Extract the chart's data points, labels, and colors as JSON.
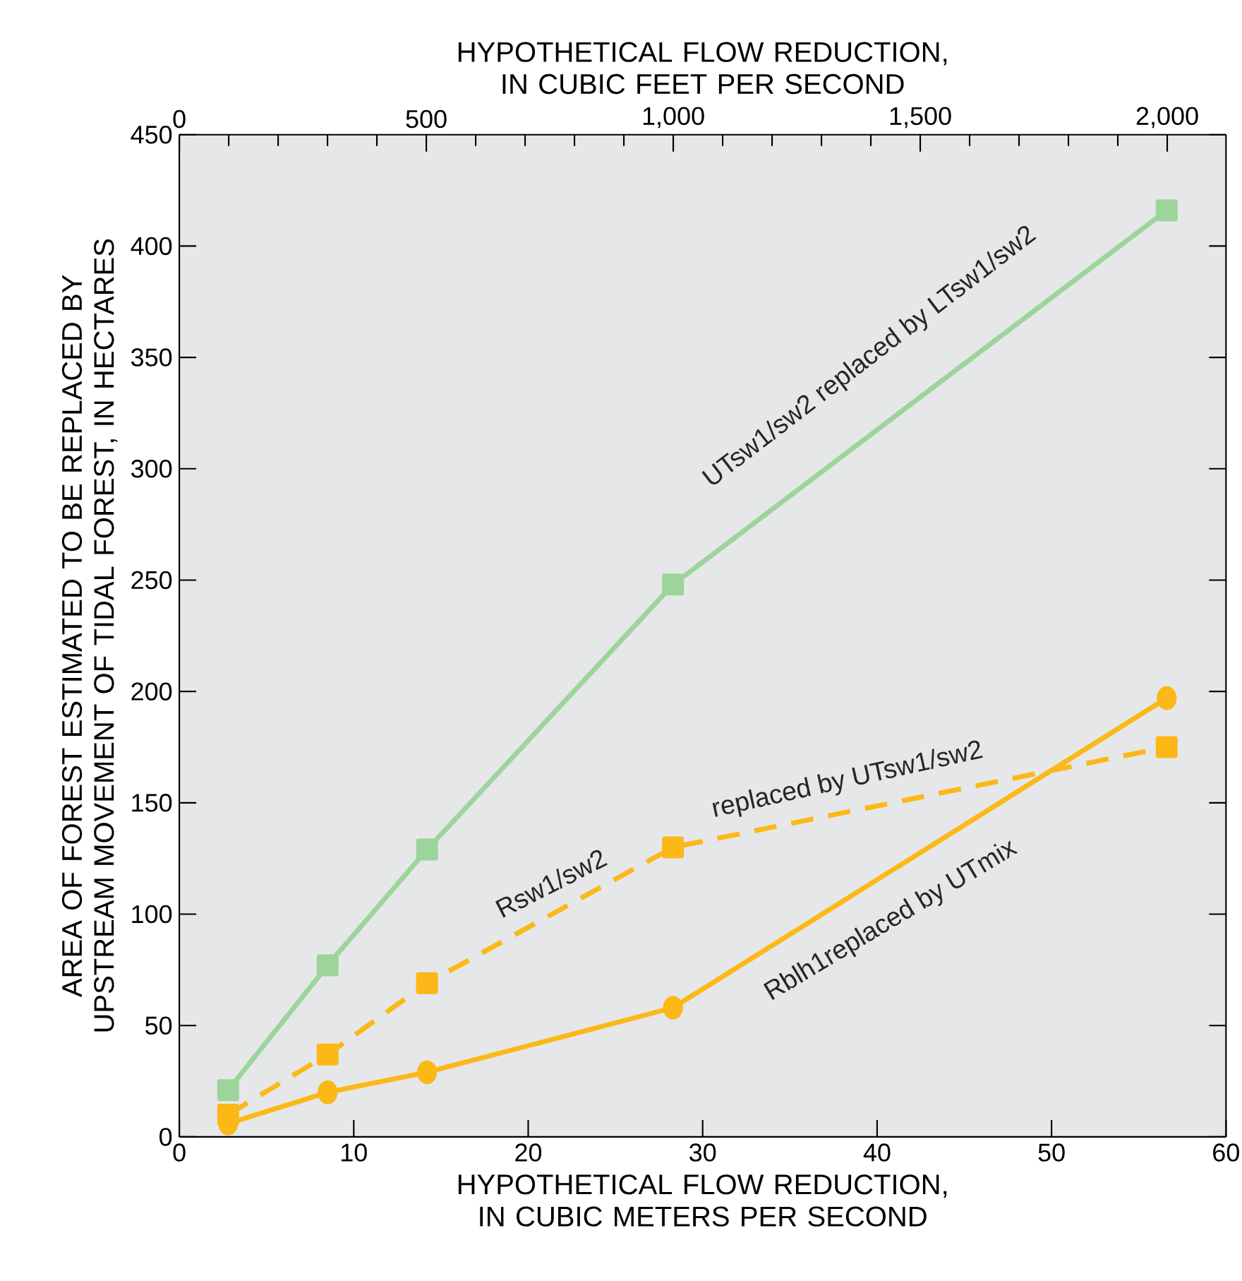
{
  "chart_data": {
    "type": "line",
    "xlabel": "HYPOTHETICAL FLOW REDUCTION, IN CUBIC METERS PER SECOND",
    "x2label": "HYPOTHETICAL FLOW REDUCTION, IN CUBIC FEET PER SECOND",
    "ylabel": "AREA OF FOREST ESTIMATED TO BE REPLACED BY UPSTREAM MOVEMENT OF TIDAL FOREST, IN HECTARES",
    "x": [
      2.8,
      8.5,
      14.2,
      28.3,
      56.6
    ],
    "xlim": [
      0,
      60
    ],
    "xticks": [
      0,
      10,
      20,
      30,
      40,
      50,
      60
    ],
    "x2lim": [
      0,
      2119
    ],
    "x2ticks": [
      0,
      500,
      {
        "value": 1000,
        "label": "1,000"
      },
      {
        "value": 1500,
        "label": "1,500"
      },
      {
        "value": 2000,
        "label": "2,000"
      }
    ],
    "ylim": [
      0,
      450
    ],
    "yticks": [
      0,
      50,
      100,
      150,
      200,
      250,
      300,
      350,
      400,
      450
    ],
    "grid": false,
    "series": [
      {
        "color": "#9dd49b",
        "values": [
          21,
          77,
          129,
          248,
          416
        ],
        "marker": "square",
        "line_style": "solid"
      },
      {
        "color": "#fbb817",
        "values": [
          10,
          37,
          69,
          130,
          175
        ],
        "marker": "square",
        "line_style": "dashed"
      },
      {
        "color": "#fbb817",
        "values": [
          6,
          20,
          29,
          58,
          197
        ],
        "marker": "circle",
        "line_style": "solid"
      }
    ],
    "annotations": [
      "UTsw1/sw2 replaced by LTsw1/sw2",
      "Rsw1/sw2",
      "replaced by UTsw1/sw2",
      "Rblh1replaced by UTmix"
    ]
  }
}
